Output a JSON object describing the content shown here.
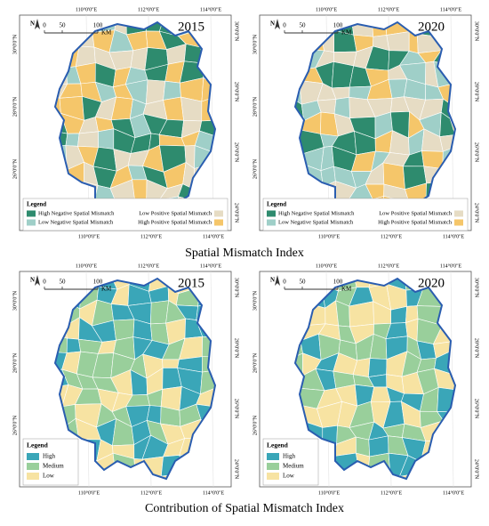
{
  "sections": [
    {
      "caption": "Spatial Mismatch Index",
      "legend": {
        "title": "Legend",
        "items": [
          {
            "label": "High Negative Spatial Mismatch",
            "color": "#2e8b6e"
          },
          {
            "label": "Low Negative Spatial Mismatch",
            "color": "#9fcfc8"
          },
          {
            "label": "Low Positive Spatial Mismatch",
            "color": "#e6dcc4"
          },
          {
            "label": "High Positive Spatial Mismatch",
            "color": "#f5c66a"
          }
        ]
      },
      "panels": [
        {
          "year": "2015"
        },
        {
          "year": "2020"
        }
      ]
    },
    {
      "caption": "Contribution of Spatial Mismatch Index",
      "legend": {
        "title": "Legend",
        "items": [
          {
            "label": "High",
            "color": "#3aa6b8"
          },
          {
            "label": "Medium",
            "color": "#99cf9b"
          },
          {
            "label": "Low",
            "color": "#f7e3a2"
          }
        ]
      },
      "panels": [
        {
          "year": "2015"
        },
        {
          "year": "2020"
        }
      ]
    }
  ],
  "graticule": {
    "lon": [
      "110°0'0\"E",
      "112°0'0\"E",
      "114°0'0\"E"
    ],
    "lat_left": [
      "30°0'0\"N",
      "28°0'0\"N",
      "26°0'0\"N"
    ],
    "lat_right": [
      "30°0'0\"N",
      "28°0'0\"N",
      "26°0'0\"N",
      "24°0'0\"N"
    ]
  },
  "scale_bar": {
    "north": "N",
    "ticks": [
      "0",
      "50",
      "100"
    ],
    "unit": "KM"
  }
}
